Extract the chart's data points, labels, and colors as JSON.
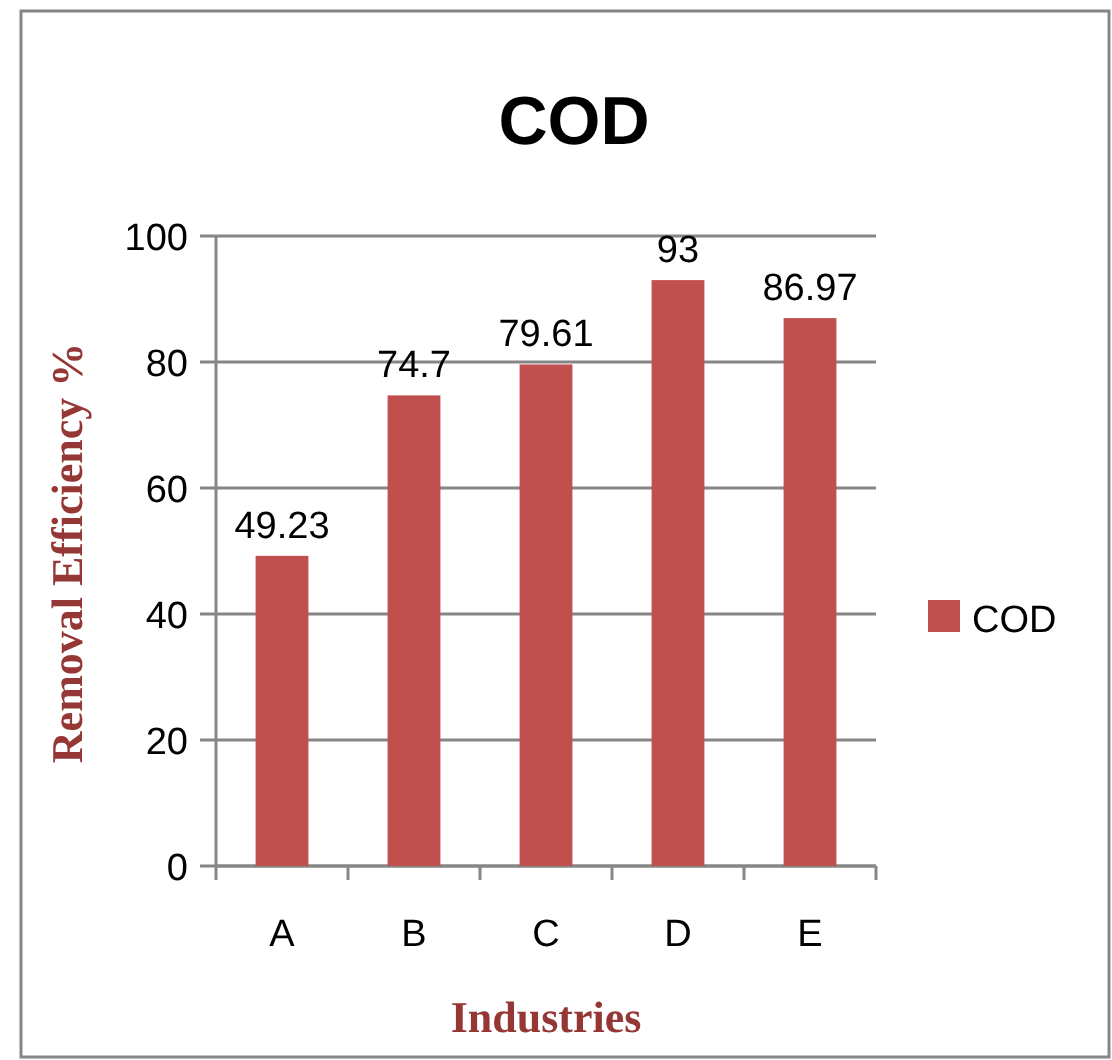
{
  "chart_data": {
    "type": "bar",
    "title": "COD",
    "xlabel": "Industries",
    "ylabel": "Removal Efficiency %",
    "categories": [
      "A",
      "B",
      "C",
      "D",
      "E"
    ],
    "series": [
      {
        "name": "COD",
        "color": "#c0504d",
        "values": [
          49.23,
          74.7,
          79.61,
          93,
          86.97
        ]
      }
    ],
    "ylim": [
      0,
      100
    ],
    "yticks": [
      0,
      20,
      40,
      60,
      80,
      100
    ],
    "grid": "y",
    "legend": "right",
    "data_labels": true
  }
}
